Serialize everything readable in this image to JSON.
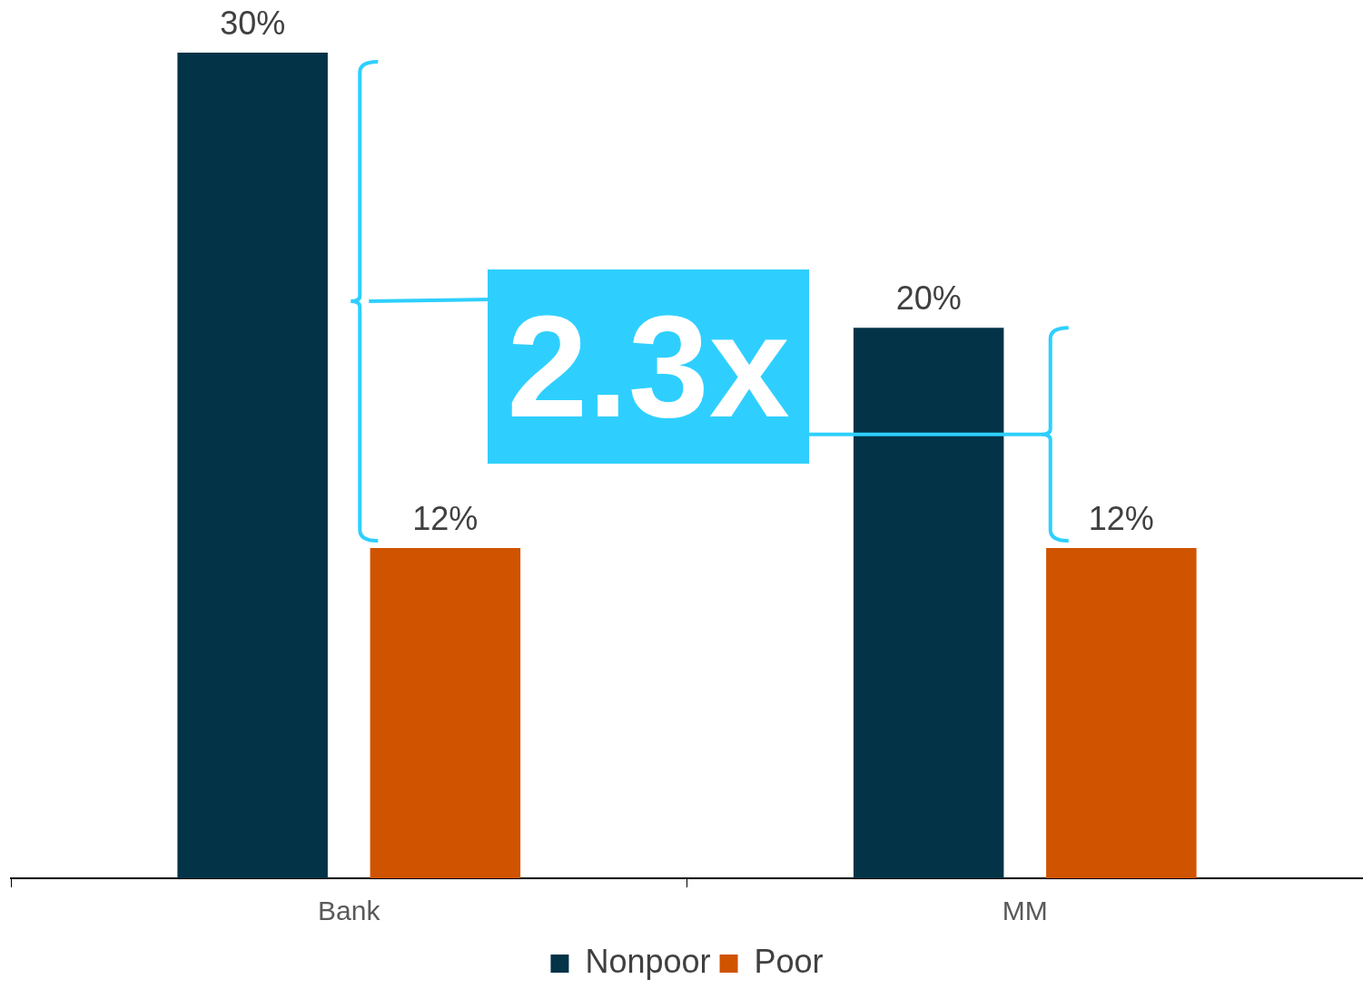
{
  "chart_data": {
    "type": "bar",
    "categories": [
      "Bank",
      "MM"
    ],
    "series": [
      {
        "name": "Nonpoor",
        "color": "#023347",
        "values": [
          30,
          20
        ],
        "value_labels": [
          "30%",
          "20%"
        ]
      },
      {
        "name": "Poor",
        "color": "#d05300",
        "values": [
          12,
          12
        ],
        "value_labels": [
          "12%",
          "12%"
        ]
      }
    ],
    "legend": "bottom",
    "grid": false,
    "annotations": [
      "2.3x"
    ]
  }
}
